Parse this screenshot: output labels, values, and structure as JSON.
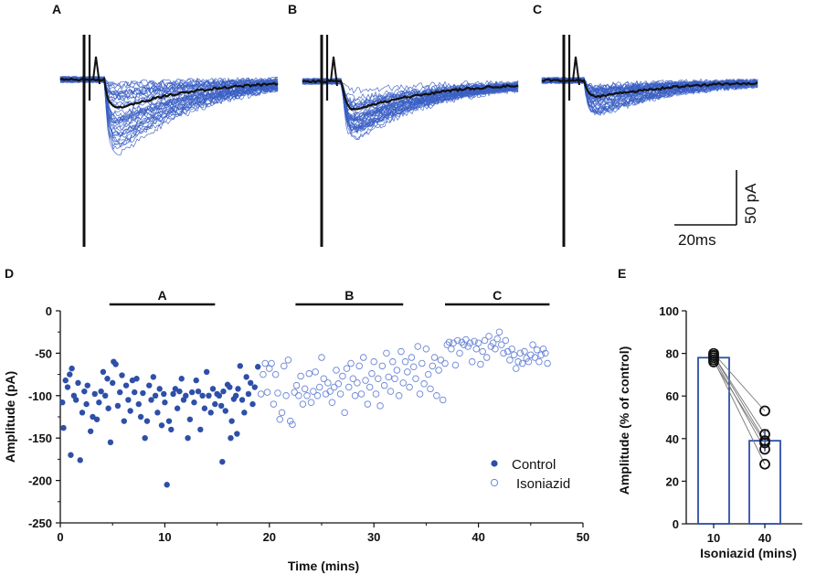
{
  "panel_letters": {
    "a": "A",
    "b": "B",
    "c": "C",
    "d": "D",
    "e": "E"
  },
  "scale_bar": {
    "vertical_label": "50 pA",
    "horizontal_label": "20ms"
  },
  "colors": {
    "series": "#2e4fa8",
    "trace_light": "#3a5fc4",
    "mean": "#111111"
  },
  "traces": {
    "panels": [
      {
        "letter": "A",
        "peak_mean": -38,
        "min_trace": -112,
        "spread": 24
      },
      {
        "letter": "B",
        "peak_mean": -38,
        "min_trace": -85,
        "spread": 16
      },
      {
        "letter": "C",
        "peak_mean": -22,
        "min_trace": -55,
        "spread": 10
      }
    ]
  },
  "chart_data": [
    {
      "type": "scatter",
      "panel": "D",
      "title": "",
      "xlabel": "Time (mins)",
      "ylabel": "Amplitude (pA)",
      "xlim": [
        0,
        50
      ],
      "ylim": [
        -250,
        0
      ],
      "xticks": [
        0,
        10,
        20,
        30,
        40,
        50
      ],
      "yticks": [
        0,
        -50,
        -100,
        -150,
        -200,
        -250
      ],
      "epochs": [
        {
          "label": "A",
          "start": 4.7,
          "end": 14.8
        },
        {
          "label": "B",
          "start": 22.5,
          "end": 32.8
        },
        {
          "label": "C",
          "start": 36.8,
          "end": 46.8
        }
      ],
      "legend": {
        "position": "bottom-right",
        "entries": [
          "Control",
          "Isoniazid"
        ]
      },
      "series": [
        {
          "name": "Control",
          "marker": "filled-circle",
          "points": [
            [
              0.2,
              -108
            ],
            [
              0.3,
              -138
            ],
            [
              0.5,
              -82
            ],
            [
              0.7,
              -90
            ],
            [
              0.9,
              -75
            ],
            [
              1.0,
              -170
            ],
            [
              1.1,
              -68
            ],
            [
              1.3,
              -100
            ],
            [
              1.5,
              -105
            ],
            [
              1.7,
              -85
            ],
            [
              1.9,
              -176
            ],
            [
              2.1,
              -120
            ],
            [
              2.3,
              -95
            ],
            [
              2.5,
              -110
            ],
            [
              2.6,
              -88
            ],
            [
              2.9,
              -142
            ],
            [
              3.1,
              -125
            ],
            [
              3.3,
              -98
            ],
            [
              3.5,
              -128
            ],
            [
              3.7,
              -108
            ],
            [
              3.9,
              -95
            ],
            [
              4.1,
              -72
            ],
            [
              4.3,
              -100
            ],
            [
              4.5,
              -80
            ],
            [
              4.6,
              -115
            ],
            [
              4.8,
              -155
            ],
            [
              5.0,
              -85
            ],
            [
              5.1,
              -60
            ],
            [
              5.3,
              -63
            ],
            [
              5.5,
              -112
            ],
            [
              5.7,
              -96
            ],
            [
              5.9,
              -76
            ],
            [
              6.1,
              -130
            ],
            [
              6.3,
              -88
            ],
            [
              6.5,
              -105
            ],
            [
              6.7,
              -118
            ],
            [
              6.9,
              -82
            ],
            [
              7.1,
              -96
            ],
            [
              7.3,
              -80
            ],
            [
              7.5,
              -110
            ],
            [
              7.7,
              -125
            ],
            [
              7.9,
              -97
            ],
            [
              8.1,
              -150
            ],
            [
              8.3,
              -130
            ],
            [
              8.5,
              -88
            ],
            [
              8.7,
              -105
            ],
            [
              8.9,
              -78
            ],
            [
              9.1,
              -100
            ],
            [
              9.3,
              -120
            ],
            [
              9.5,
              -92
            ],
            [
              9.7,
              -135
            ],
            [
              9.9,
              -98
            ],
            [
              10.0,
              -108
            ],
            [
              10.2,
              -205
            ],
            [
              10.4,
              -130
            ],
            [
              10.6,
              -140
            ],
            [
              10.8,
              -98
            ],
            [
              11.0,
              -92
            ],
            [
              11.2,
              -115
            ],
            [
              11.4,
              -95
            ],
            [
              11.6,
              -80
            ],
            [
              11.8,
              -105
            ],
            [
              12.0,
              -100
            ],
            [
              12.2,
              -150
            ],
            [
              12.4,
              -128
            ],
            [
              12.6,
              -96
            ],
            [
              12.8,
              -108
            ],
            [
              13.0,
              -82
            ],
            [
              13.2,
              -95
            ],
            [
              13.4,
              -140
            ],
            [
              13.6,
              -100
            ],
            [
              13.8,
              -115
            ],
            [
              14.0,
              -72
            ],
            [
              14.2,
              -100
            ],
            [
              14.4,
              -120
            ],
            [
              14.6,
              -92
            ],
            [
              14.8,
              -110
            ],
            [
              15.0,
              -98
            ],
            [
              15.2,
              -100
            ],
            [
              15.4,
              -112
            ],
            [
              15.6,
              -95
            ],
            [
              15.8,
              -118
            ],
            [
              16.0,
              -87
            ],
            [
              16.2,
              -90
            ],
            [
              16.4,
              -130
            ],
            [
              16.6,
              -104
            ],
            [
              16.8,
              -100
            ],
            [
              17.0,
              -92
            ],
            [
              17.2,
              -65
            ],
            [
              17.4,
              -105
            ],
            [
              17.6,
              -120
            ],
            [
              17.8,
              -78
            ],
            [
              18.0,
              -98
            ],
            [
              18.2,
              -85
            ],
            [
              18.4,
              -110
            ],
            [
              18.6,
              -90
            ],
            [
              18.9,
              -66
            ],
            [
              15.5,
              -178
            ],
            [
              16.3,
              -150
            ],
            [
              16.9,
              -145
            ]
          ]
        },
        {
          "name": "Isoniazid",
          "marker": "open-circle",
          "points": [
            [
              19.2,
              -98
            ],
            [
              19.4,
              -75
            ],
            [
              19.6,
              -62
            ],
            [
              19.8,
              -96
            ],
            [
              20.0,
              -68
            ],
            [
              20.2,
              -62
            ],
            [
              20.4,
              -110
            ],
            [
              20.6,
              -75
            ],
            [
              20.8,
              -97
            ],
            [
              21.0,
              -128
            ],
            [
              21.2,
              -120
            ],
            [
              21.4,
              -65
            ],
            [
              21.6,
              -100
            ],
            [
              21.8,
              -58
            ],
            [
              22.0,
              -130
            ],
            [
              22.2,
              -134
            ],
            [
              22.4,
              -96
            ],
            [
              22.6,
              -88
            ],
            [
              22.8,
              -100
            ],
            [
              23.0,
              -77
            ],
            [
              23.2,
              -110
            ],
            [
              23.4,
              -92
            ],
            [
              23.6,
              -100
            ],
            [
              23.8,
              -74
            ],
            [
              24.0,
              -108
            ],
            [
              24.2,
              -95
            ],
            [
              24.4,
              -72
            ],
            [
              24.6,
              -100
            ],
            [
              24.8,
              -90
            ],
            [
              25.0,
              -55
            ],
            [
              25.2,
              -80
            ],
            [
              25.4,
              -98
            ],
            [
              25.6,
              -85
            ],
            [
              25.8,
              -95
            ],
            [
              26.0,
              -108
            ],
            [
              26.2,
              -90
            ],
            [
              26.4,
              -70
            ],
            [
              26.6,
              -86
            ],
            [
              26.8,
              -98
            ],
            [
              27.0,
              -77
            ],
            [
              27.2,
              -120
            ],
            [
              27.4,
              -68
            ],
            [
              27.6,
              -90
            ],
            [
              27.8,
              -62
            ],
            [
              28.0,
              -80
            ],
            [
              28.2,
              -100
            ],
            [
              28.4,
              -85
            ],
            [
              28.6,
              -65
            ],
            [
              28.8,
              -98
            ],
            [
              29.0,
              -55
            ],
            [
              29.2,
              -82
            ],
            [
              29.4,
              -110
            ],
            [
              29.6,
              -90
            ],
            [
              29.8,
              -74
            ],
            [
              30.0,
              -60
            ],
            [
              30.2,
              -98
            ],
            [
              30.4,
              -80
            ],
            [
              30.6,
              -112
            ],
            [
              30.8,
              -65
            ],
            [
              31.0,
              -88
            ],
            [
              31.2,
              -50
            ],
            [
              31.4,
              -78
            ],
            [
              31.6,
              -95
            ],
            [
              31.8,
              -60
            ],
            [
              32.0,
              -80
            ],
            [
              32.2,
              -70
            ],
            [
              32.4,
              -100
            ],
            [
              32.6,
              -48
            ],
            [
              32.8,
              -85
            ],
            [
              33.0,
              -60
            ],
            [
              33.2,
              -72
            ],
            [
              33.4,
              -90
            ],
            [
              33.6,
              -55
            ],
            [
              33.8,
              -66
            ],
            [
              34.0,
              -80
            ],
            [
              34.2,
              -42
            ],
            [
              34.4,
              -98
            ],
            [
              34.6,
              -62
            ],
            [
              34.8,
              -86
            ],
            [
              35.0,
              -45
            ],
            [
              35.2,
              -75
            ],
            [
              35.4,
              -92
            ],
            [
              35.6,
              -65
            ],
            [
              35.8,
              -55
            ],
            [
              36.0,
              -100
            ],
            [
              36.2,
              -70
            ],
            [
              36.4,
              -58
            ],
            [
              36.6,
              -105
            ],
            [
              36.8,
              -62
            ],
            [
              37.0,
              -40
            ],
            [
              37.2,
              -37
            ],
            [
              37.4,
              -45
            ],
            [
              37.6,
              -38
            ],
            [
              37.8,
              -64
            ],
            [
              38.0,
              -35
            ],
            [
              38.2,
              -50
            ],
            [
              38.4,
              -37
            ],
            [
              38.6,
              -40
            ],
            [
              38.8,
              -34
            ],
            [
              39.0,
              -42
            ],
            [
              39.2,
              -38
            ],
            [
              39.4,
              -60
            ],
            [
              39.6,
              -36
            ],
            [
              39.8,
              -45
            ],
            [
              40.0,
              -38
            ],
            [
              40.2,
              -63
            ],
            [
              40.4,
              -48
            ],
            [
              40.6,
              -35
            ],
            [
              40.8,
              -55
            ],
            [
              41.0,
              -30
            ],
            [
              41.2,
              -42
            ],
            [
              41.4,
              -38
            ],
            [
              41.6,
              -45
            ],
            [
              41.8,
              -33
            ],
            [
              42.0,
              -25
            ],
            [
              42.2,
              -40
            ],
            [
              42.4,
              -50
            ],
            [
              42.6,
              -35
            ],
            [
              42.8,
              -48
            ],
            [
              43.0,
              -58
            ],
            [
              43.2,
              -45
            ],
            [
              43.4,
              -52
            ],
            [
              43.6,
              -68
            ],
            [
              43.8,
              -60
            ],
            [
              44.0,
              -50
            ],
            [
              44.2,
              -62
            ],
            [
              44.4,
              -48
            ],
            [
              44.6,
              -56
            ],
            [
              44.8,
              -60
            ],
            [
              45.0,
              -52
            ],
            [
              45.2,
              -40
            ],
            [
              45.4,
              -55
            ],
            [
              45.6,
              -46
            ],
            [
              45.8,
              -60
            ],
            [
              46.0,
              -52
            ],
            [
              46.2,
              -45
            ],
            [
              46.4,
              -50
            ],
            [
              46.6,
              -62
            ]
          ]
        }
      ]
    },
    {
      "type": "bar",
      "panel": "E",
      "title": "",
      "xlabel": "Isoniazid (mins)",
      "ylabel": "Amplitude (% of control)",
      "categories": [
        "10",
        "40"
      ],
      "values": [
        78,
        39
      ],
      "errors": [
        1,
        5
      ],
      "ylim": [
        0,
        100
      ],
      "yticks": [
        0,
        20,
        40,
        60,
        80,
        100
      ],
      "paired_points": [
        [
          80,
          53
        ],
        [
          79,
          39
        ],
        [
          78,
          35
        ],
        [
          77,
          28
        ],
        [
          76,
          38
        ],
        [
          79,
          42
        ]
      ]
    }
  ]
}
